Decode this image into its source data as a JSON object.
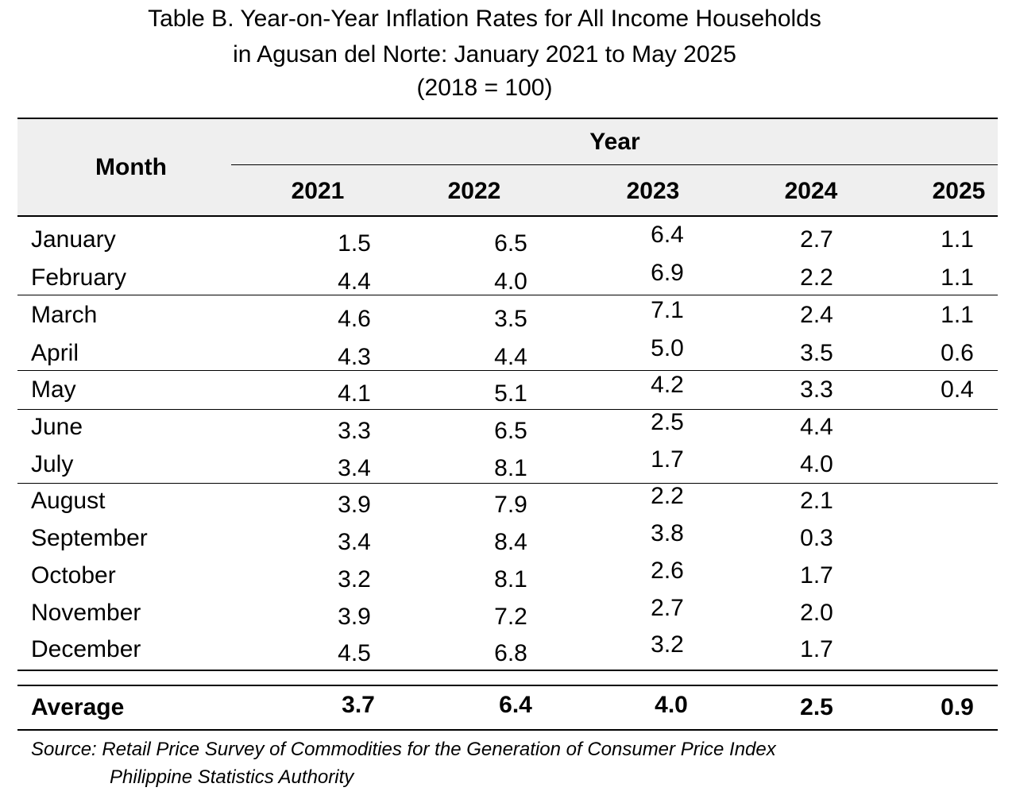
{
  "title": {
    "line1": "Table B. Year-on-Year Inflation Rates for All Income Households",
    "line2": "in Agusan del Norte: January 2021 to May 2025",
    "line3": "(2018 = 100)"
  },
  "header": {
    "month": "Month",
    "year": "Year",
    "years": [
      "2021",
      "2022",
      "2023",
      "2024",
      "2025"
    ]
  },
  "rows": [
    {
      "month": "January",
      "values": [
        "1.5",
        "6.5",
        "6.4",
        "2.7",
        "1.1"
      ]
    },
    {
      "month": "February",
      "values": [
        "4.4",
        "4.0",
        "6.9",
        "2.2",
        "1.1"
      ]
    },
    {
      "month": "March",
      "values": [
        "4.6",
        "3.5",
        "7.1",
        "2.4",
        "1.1"
      ]
    },
    {
      "month": "April",
      "values": [
        "4.3",
        "4.4",
        "5.0",
        "3.5",
        "0.6"
      ]
    },
    {
      "month": "May",
      "values": [
        "4.1",
        "5.1",
        "4.2",
        "3.3",
        "0.4"
      ]
    },
    {
      "month": "June",
      "values": [
        "3.3",
        "6.5",
        "2.5",
        "4.4",
        ""
      ]
    },
    {
      "month": "July",
      "values": [
        "3.4",
        "8.1",
        "1.7",
        "4.0",
        ""
      ]
    },
    {
      "month": "August",
      "values": [
        "3.9",
        "7.9",
        "2.2",
        "2.1",
        ""
      ]
    },
    {
      "month": "September",
      "values": [
        "3.4",
        "8.4",
        "3.8",
        "0.3",
        ""
      ]
    },
    {
      "month": "October",
      "values": [
        "3.2",
        "8.1",
        "2.6",
        "1.7",
        ""
      ]
    },
    {
      "month": "November",
      "values": [
        "3.9",
        "7.2",
        "2.7",
        "2.0",
        ""
      ]
    },
    {
      "month": "December",
      "values": [
        "4.5",
        "6.8",
        "3.2",
        "1.7",
        ""
      ]
    }
  ],
  "average": {
    "label": "Average",
    "values": [
      "3.7",
      "6.4",
      "4.0",
      "2.5",
      "0.9"
    ]
  },
  "source": {
    "line1": "Source: Retail Price Survey of Commodities for the Generation of Consumer Price Index",
    "line2": "Philippine Statistics Authority"
  }
}
